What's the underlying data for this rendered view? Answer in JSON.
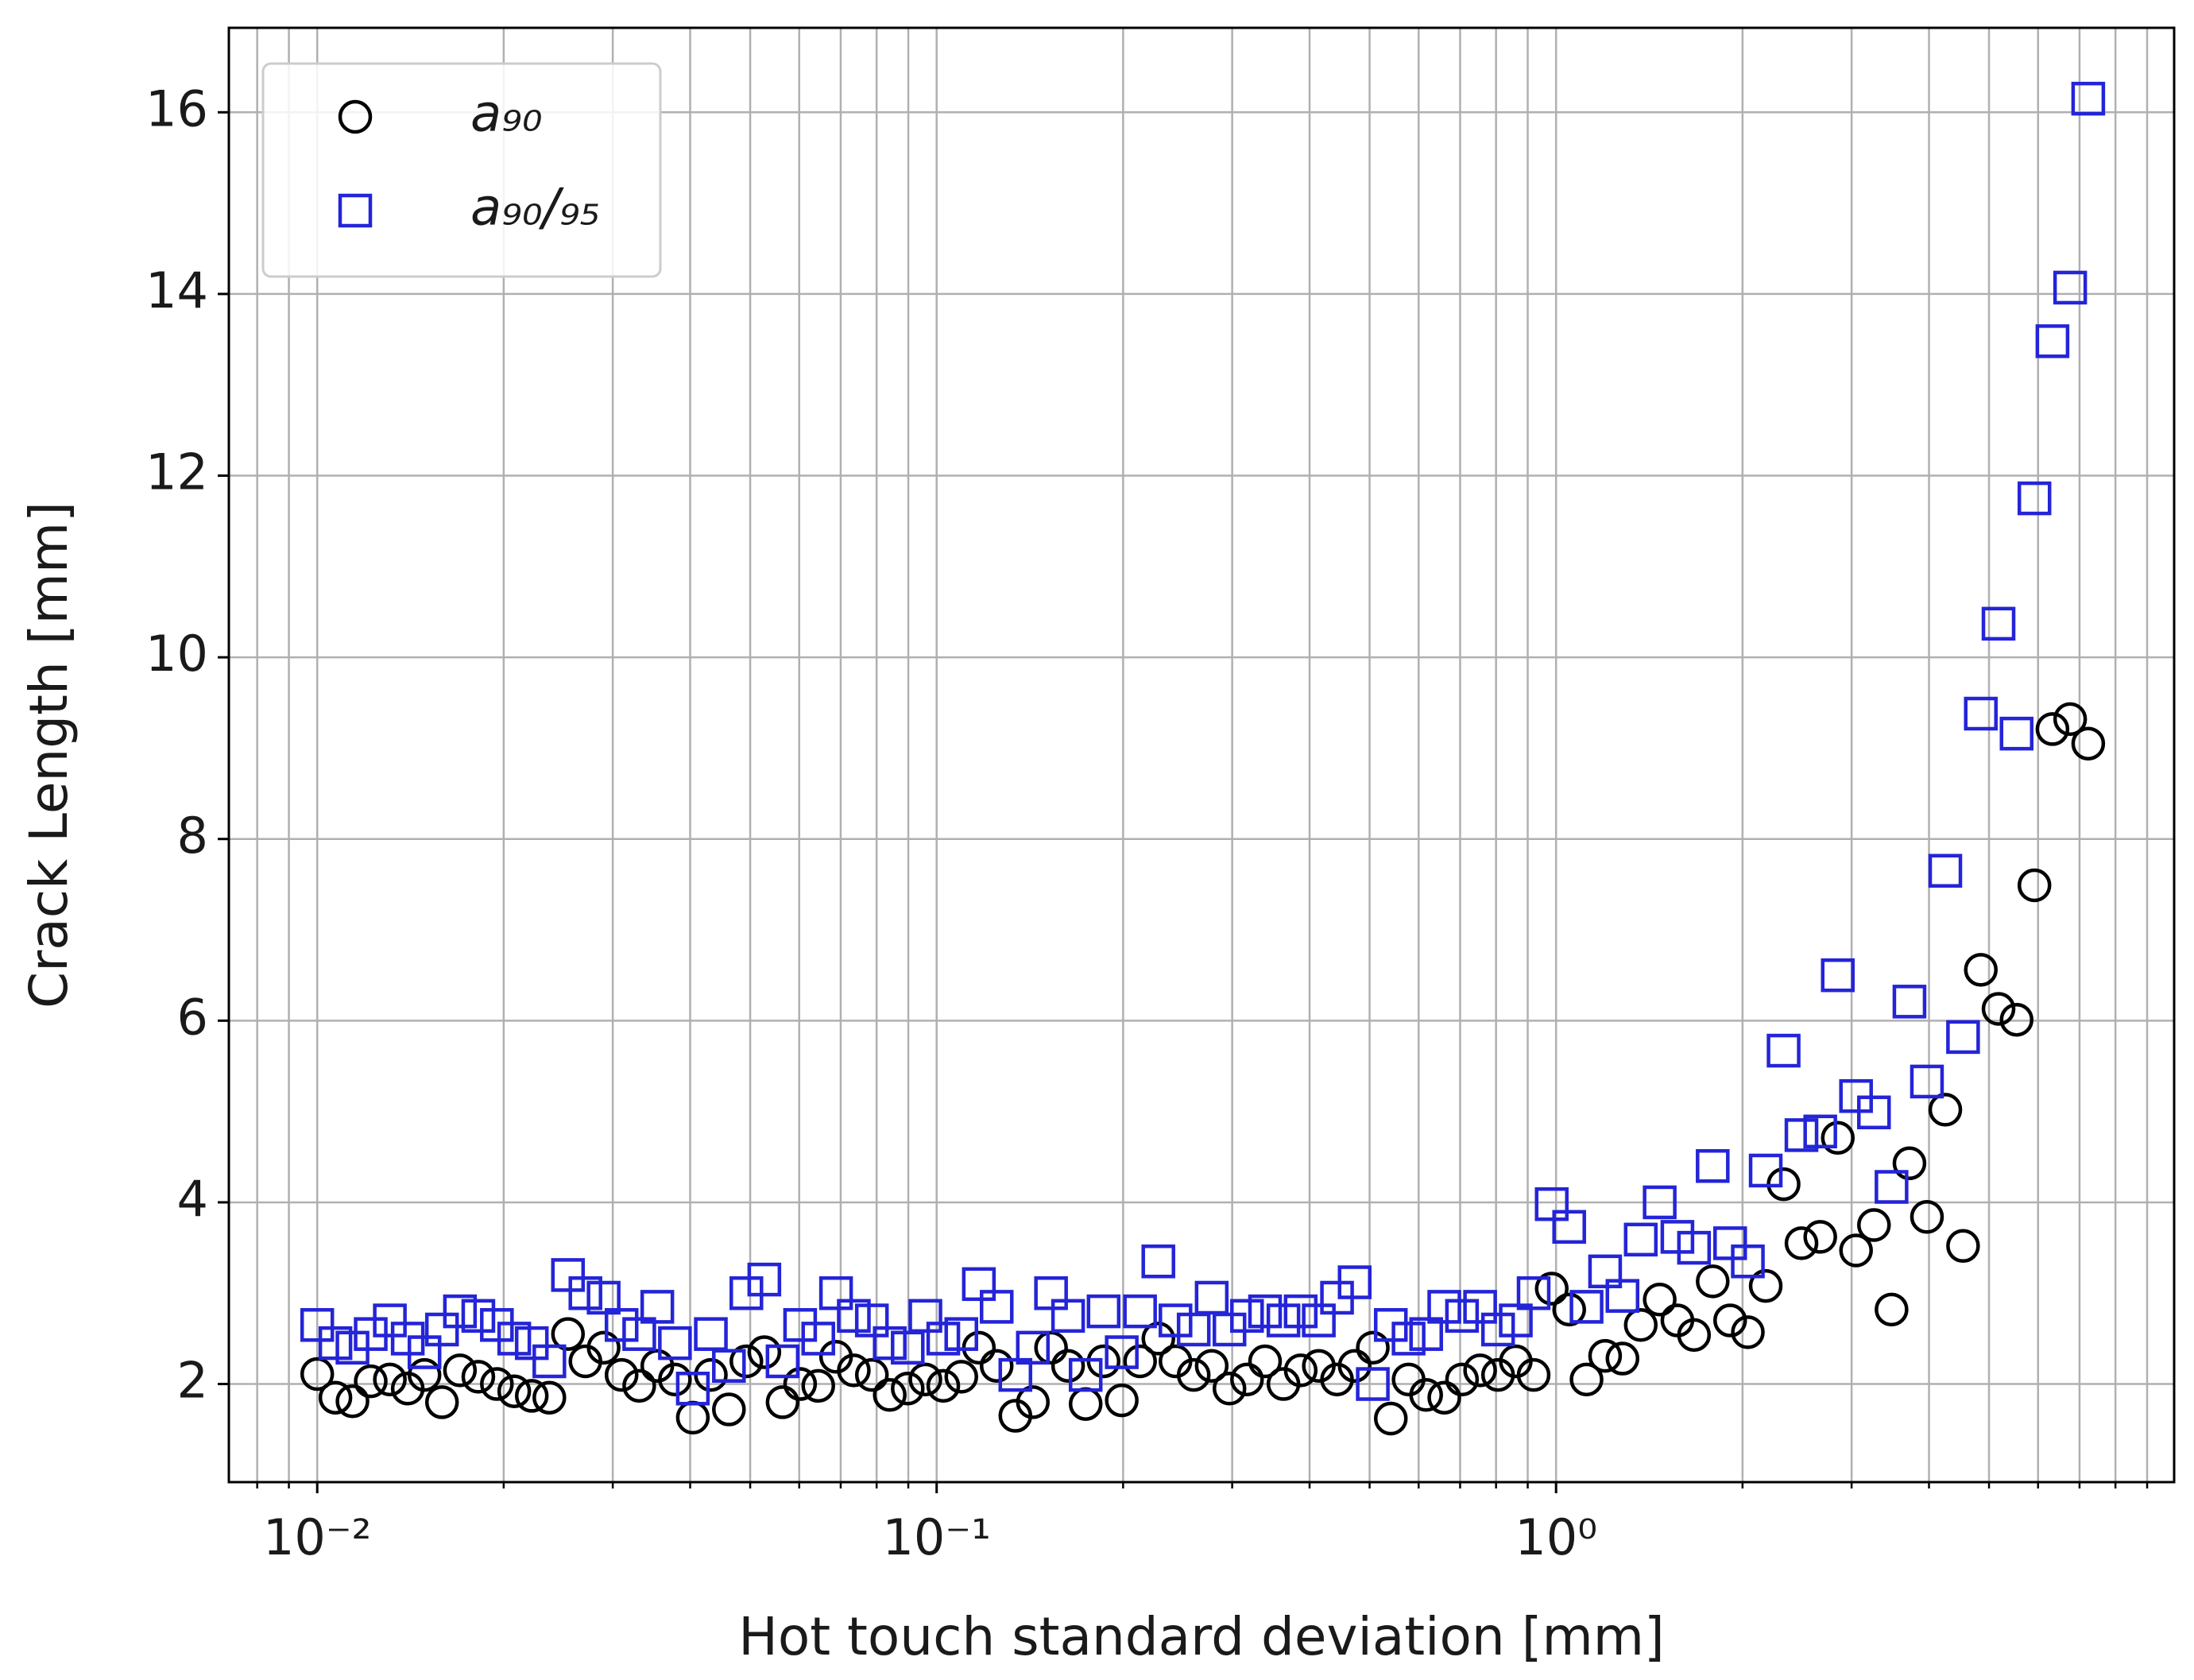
{
  "chart_data": {
    "type": "scatter",
    "xlabel": "Hot touch standard deviation [mm]",
    "ylabel": "Crack Length [mm]",
    "xscale": "log",
    "grid": true,
    "legend_loc": "upper left",
    "xlim": [
      0.0072,
      9.95
    ],
    "ylim": [
      0.92,
      16.93
    ],
    "xticks": [
      {
        "value": 0.01,
        "label": "10⁻²"
      },
      {
        "value": 0.1,
        "label": "10⁻¹"
      },
      {
        "value": 1,
        "label": "10⁰"
      }
    ],
    "xminorticks": [
      0.008,
      0.009,
      0.02,
      0.03,
      0.04,
      0.05,
      0.06,
      0.07,
      0.08,
      0.09,
      0.2,
      0.3,
      0.4,
      0.5,
      0.6,
      0.7,
      0.8,
      0.9,
      2,
      3,
      4,
      5,
      6,
      7,
      8,
      9
    ],
    "yticks": [
      2,
      4,
      6,
      8,
      10,
      12,
      14,
      16
    ],
    "x": [
      0.01,
      0.0107,
      0.0114,
      0.0122,
      0.0131,
      0.014,
      0.0149,
      0.0159,
      0.017,
      0.0182,
      0.0195,
      0.0208,
      0.0222,
      0.0237,
      0.0254,
      0.0271,
      0.029,
      0.031,
      0.0331,
      0.0354,
      0.0378,
      0.0404,
      0.0432,
      0.0462,
      0.0493,
      0.0527,
      0.0564,
      0.0602,
      0.0644,
      0.0688,
      0.0735,
      0.0786,
      0.084,
      0.0898,
      0.0959,
      0.1025,
      0.1096,
      0.117,
      0.125,
      0.134,
      0.143,
      0.153,
      0.163,
      0.174,
      0.186,
      0.199,
      0.213,
      0.228,
      0.243,
      0.26,
      0.278,
      0.297,
      0.317,
      0.339,
      0.363,
      0.387,
      0.414,
      0.443,
      0.473,
      0.506,
      0.541,
      0.578,
      0.617,
      0.66,
      0.705,
      0.754,
      0.806,
      0.861,
      0.92,
      0.984,
      1.05,
      1.12,
      1.2,
      1.28,
      1.37,
      1.47,
      1.57,
      1.67,
      1.79,
      1.91,
      2.04,
      2.18,
      2.33,
      2.49,
      2.67,
      2.85,
      3.05,
      3.26,
      3.48,
      3.72,
      3.97,
      4.25,
      4.54,
      4.85,
      5.18,
      5.54,
      5.92,
      6.33,
      6.76,
      7.23
    ],
    "series": [
      {
        "name": "a₉₀",
        "color": "#000000",
        "marker": "o",
        "values": [
          2.11,
          1.85,
          1.81,
          2.03,
          2.05,
          1.95,
          2.1,
          1.8,
          2.15,
          2.08,
          2.0,
          1.92,
          1.87,
          1.85,
          2.55,
          2.25,
          2.4,
          2.1,
          1.98,
          2.2,
          2.05,
          1.63,
          2.1,
          1.72,
          2.25,
          2.35,
          1.8,
          2.0,
          1.98,
          2.3,
          2.15,
          2.1,
          1.88,
          1.95,
          2.05,
          1.98,
          2.08,
          2.4,
          2.2,
          1.65,
          1.8,
          2.4,
          2.2,
          1.78,
          2.25,
          1.82,
          2.25,
          2.5,
          2.25,
          2.1,
          2.2,
          1.95,
          2.05,
          2.25,
          2.0,
          2.15,
          2.2,
          2.05,
          2.2,
          2.4,
          1.62,
          2.05,
          1.88,
          1.85,
          2.05,
          2.15,
          2.1,
          2.25,
          2.1,
          3.05,
          2.82,
          2.05,
          2.31,
          2.28,
          2.65,
          2.93,
          2.7,
          2.54,
          3.13,
          2.7,
          2.57,
          3.08,
          4.2,
          3.55,
          3.62,
          4.71,
          3.47,
          3.75,
          2.82,
          4.43,
          3.84,
          5.02,
          3.52,
          6.56,
          6.13,
          6.01,
          7.49,
          9.21,
          9.32,
          9.05
        ]
      },
      {
        "name": "a₉₀/₉₅",
        "color": "#2424d8",
        "marker": "s",
        "values": [
          2.65,
          2.45,
          2.4,
          2.55,
          2.7,
          2.5,
          2.35,
          2.6,
          2.8,
          2.75,
          2.65,
          2.5,
          2.45,
          2.25,
          3.2,
          3.0,
          2.95,
          2.65,
          2.55,
          2.85,
          2.45,
          1.95,
          2.55,
          2.2,
          3.0,
          3.15,
          2.25,
          2.65,
          2.5,
          3.0,
          2.75,
          2.7,
          2.45,
          2.4,
          2.75,
          2.5,
          2.55,
          3.1,
          2.85,
          2.1,
          2.4,
          3.0,
          2.75,
          2.1,
          2.8,
          2.35,
          2.8,
          3.35,
          2.7,
          2.6,
          2.95,
          2.6,
          2.75,
          2.8,
          2.7,
          2.8,
          2.7,
          2.95,
          3.12,
          2.0,
          2.65,
          2.5,
          2.55,
          2.85,
          2.75,
          2.85,
          2.6,
          2.7,
          3.0,
          3.98,
          3.73,
          2.85,
          3.24,
          2.97,
          3.59,
          4.0,
          3.62,
          3.5,
          4.4,
          3.55,
          3.35,
          4.35,
          5.67,
          4.74,
          4.78,
          6.5,
          5.17,
          4.99,
          4.17,
          6.21,
          5.33,
          7.65,
          5.82,
          9.38,
          10.37,
          9.16,
          11.75,
          13.48,
          14.07,
          16.15
        ]
      }
    ]
  }
}
